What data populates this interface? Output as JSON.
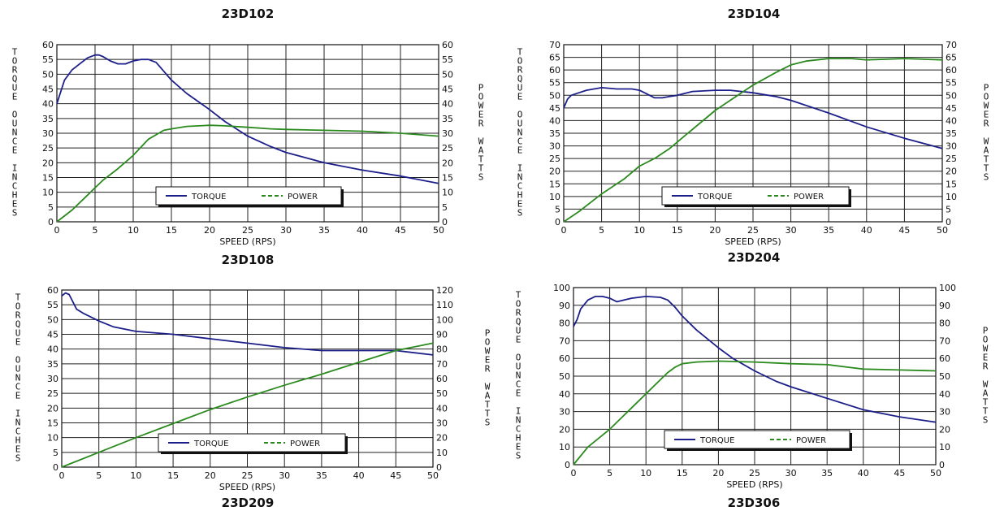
{
  "chart_data": [
    {
      "type": "line",
      "title": "23D102",
      "xlabel": "SPEED (RPS)",
      "ylabel": "TORQUE OUNCE INCHES",
      "y2label": "POWER WATTS",
      "xlim": [
        0,
        50
      ],
      "xticks": [
        "0",
        "5",
        "10",
        "15",
        "20",
        "25",
        "30",
        "35",
        "40",
        "45",
        "50"
      ],
      "ylim": [
        0,
        60
      ],
      "yticks": [
        "0",
        "5",
        "10",
        "15",
        "20",
        "25",
        "30",
        "35",
        "40",
        "45",
        "50",
        "55",
        "60"
      ],
      "y2lim": [
        0,
        60
      ],
      "y2ticks": [
        "0",
        "5",
        "10",
        "15",
        "20",
        "25",
        "30",
        "35",
        "40",
        "45",
        "50",
        "55",
        "60"
      ],
      "grid": true,
      "legend": "bottom-center",
      "series": [
        {
          "name": "TORQUE",
          "color": "#1c1f8a",
          "axis": "left",
          "x": [
            0,
            0.5,
            1,
            2,
            3,
            4,
            5,
            5.5,
            6,
            7,
            8,
            9,
            10,
            11,
            12,
            13,
            14,
            15,
            17,
            20,
            22,
            25,
            28,
            30,
            35,
            40,
            45,
            50
          ],
          "y": [
            40,
            44,
            48,
            51.5,
            53.5,
            55.5,
            56.5,
            56.5,
            56,
            54.5,
            53.5,
            53.5,
            54.5,
            55,
            55,
            54,
            51,
            48,
            43.5,
            38,
            34,
            29,
            25.5,
            23.5,
            20,
            17.5,
            15.5,
            13
          ]
        },
        {
          "name": "POWER",
          "color": "#2b8a1e",
          "axis": "right",
          "x": [
            0,
            2,
            4,
            6,
            8,
            10,
            12,
            14,
            15,
            17,
            20,
            22,
            25,
            28,
            30,
            35,
            40,
            45,
            50
          ],
          "y": [
            0,
            4,
            9,
            14,
            18,
            22.5,
            28,
            31,
            31.5,
            32.3,
            32.7,
            32.5,
            32,
            31.5,
            31.3,
            31,
            30.7,
            30,
            29
          ]
        }
      ]
    },
    {
      "type": "line",
      "title": "23D104",
      "xlabel": "SPEED (RPS)",
      "ylabel": "TORQUE OUNCE INCHES",
      "y2label": "POWER WATTS",
      "xlim": [
        0,
        50
      ],
      "xticks": [
        "0",
        "5",
        "10",
        "15",
        "20",
        "25",
        "30",
        "35",
        "40",
        "45",
        "50"
      ],
      "ylim": [
        0,
        70
      ],
      "yticks": [
        "0",
        "5",
        "10",
        "15",
        "20",
        "25",
        "30",
        "35",
        "40",
        "45",
        "50",
        "55",
        "60",
        "65",
        "70"
      ],
      "y2lim": [
        0,
        70
      ],
      "y2ticks": [
        "0",
        "5",
        "10",
        "15",
        "20",
        "25",
        "30",
        "35",
        "40",
        "45",
        "50",
        "55",
        "60",
        "65",
        "70"
      ],
      "grid": true,
      "legend": "bottom-center",
      "series": [
        {
          "name": "TORQUE",
          "color": "#1c1f8a",
          "axis": "left",
          "x": [
            0,
            0.5,
            1,
            2,
            3,
            5,
            7,
            9,
            10,
            11,
            12,
            13,
            14,
            15,
            17,
            20,
            22,
            25,
            28,
            30,
            35,
            40,
            45,
            50
          ],
          "y": [
            45,
            48.5,
            50,
            51,
            52,
            53,
            52.5,
            52.5,
            52,
            50.5,
            49,
            49,
            49.5,
            50,
            51.5,
            52,
            52,
            51,
            49.5,
            48,
            43,
            37.5,
            33,
            29
          ]
        },
        {
          "name": "POWER",
          "color": "#2b8a1e",
          "axis": "right",
          "x": [
            0,
            2,
            5,
            8,
            10,
            12,
            14,
            16,
            18,
            20,
            22,
            25,
            28,
            30,
            32,
            35,
            38,
            40,
            45,
            50
          ],
          "y": [
            0,
            4,
            11,
            17,
            22,
            25,
            29,
            34,
            39,
            44,
            48,
            54,
            59,
            62,
            63.5,
            64.5,
            64.5,
            64,
            64.5,
            64
          ]
        }
      ]
    },
    {
      "type": "line",
      "title": "23D108",
      "xlabel": "SPEED (RPS)",
      "ylabel": "TORQUE OUNCE INCHES",
      "y2label": "POWER WATTS",
      "xlim": [
        0,
        50
      ],
      "xticks": [
        "0",
        "5",
        "10",
        "15",
        "20",
        "25",
        "30",
        "35",
        "40",
        "45",
        "50"
      ],
      "ylim": [
        0,
        60
      ],
      "yticks": [
        "0",
        "5",
        "10",
        "15",
        "20",
        "25",
        "30",
        "35",
        "40",
        "45",
        "50",
        "55",
        "60"
      ],
      "y2lim": [
        0,
        120
      ],
      "y2ticks": [
        "0",
        "10",
        "20",
        "30",
        "40",
        "50",
        "60",
        "70",
        "80",
        "90",
        "100",
        "110",
        "120"
      ],
      "grid": true,
      "legend": "bottom-center",
      "series": [
        {
          "name": "TORQUE",
          "color": "#1c1f8a",
          "axis": "left",
          "x": [
            0,
            0.5,
            1,
            1.5,
            2,
            3,
            5,
            7,
            10,
            15,
            20,
            25,
            30,
            35,
            40,
            45,
            50
          ],
          "y": [
            58,
            59,
            58.5,
            56,
            53.5,
            52,
            49.5,
            47.5,
            46,
            45,
            43.5,
            42,
            40.5,
            39.5,
            39.5,
            39.5,
            38
          ]
        },
        {
          "name": "POWER",
          "color": "#2b8a1e",
          "axis": "right",
          "x": [
            0,
            5,
            10,
            15,
            20,
            25,
            30,
            35,
            40,
            45,
            50
          ],
          "y": [
            0,
            10,
            20,
            29.5,
            39,
            47.5,
            55.5,
            63,
            71,
            79,
            84
          ]
        }
      ]
    },
    {
      "type": "line",
      "title": "23D204",
      "xlabel": "SPEED (RPS)",
      "ylabel": "TORQUE OUNCE INCHES",
      "y2label": "POWER WATTS",
      "xlim": [
        0,
        50
      ],
      "xticks": [
        "0",
        "5",
        "10",
        "15",
        "20",
        "25",
        "30",
        "35",
        "40",
        "45",
        "50"
      ],
      "ylim": [
        0,
        100
      ],
      "yticks": [
        "0",
        "10",
        "20",
        "30",
        "40",
        "50",
        "60",
        "70",
        "80",
        "90",
        "100"
      ],
      "y2lim": [
        0,
        100
      ],
      "y2ticks": [
        "0",
        "10",
        "20",
        "30",
        "40",
        "50",
        "60",
        "70",
        "80",
        "90",
        "100"
      ],
      "grid": true,
      "legend": "bottom-center",
      "series": [
        {
          "name": "TORQUE",
          "color": "#1c1f8a",
          "axis": "left",
          "x": [
            0,
            0.5,
            1,
            2,
            3,
            4,
            5,
            6,
            7,
            8,
            10,
            12,
            13,
            14,
            15,
            17,
            20,
            22,
            25,
            28,
            30,
            35,
            40,
            45,
            50
          ],
          "y": [
            78,
            82,
            88,
            93,
            95,
            95,
            94,
            92,
            93,
            94,
            95,
            94.5,
            93,
            89,
            84,
            76,
            66,
            60,
            53,
            47,
            44,
            37.5,
            31,
            27,
            24
          ]
        },
        {
          "name": "POWER",
          "color": "#2b8a1e",
          "axis": "right",
          "x": [
            0,
            2,
            5,
            8,
            10,
            12,
            13,
            14,
            15,
            17,
            20,
            25,
            30,
            35,
            38,
            40,
            45,
            50
          ],
          "y": [
            0,
            10,
            20,
            32,
            40,
            48,
            52,
            55,
            57,
            58,
            58.5,
            58,
            57,
            56.5,
            55,
            54,
            53.5,
            53
          ]
        }
      ]
    }
  ]
}
